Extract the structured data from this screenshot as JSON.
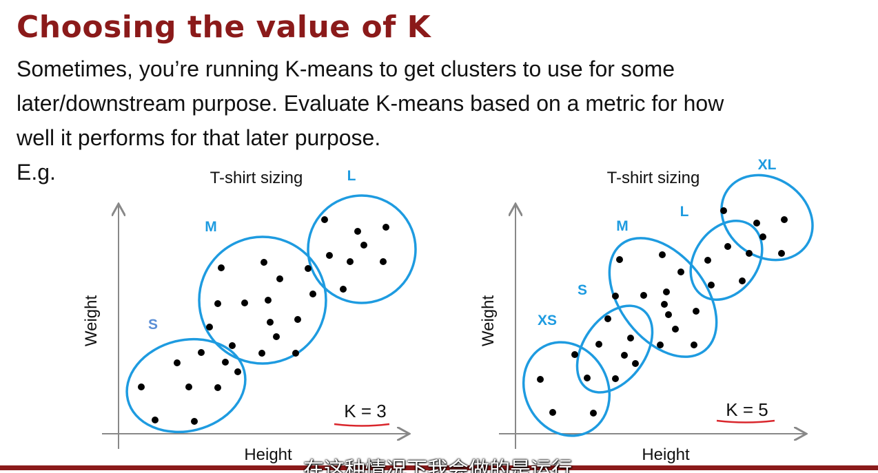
{
  "slide": {
    "title": "Choosing the value of K",
    "lines": [
      "Sometimes, you’re running K-means to get clusters to use for some",
      "later/downstream purpose. Evaluate K-means based on a metric for how",
      "well it performs for that later purpose.",
      "E.g."
    ],
    "subtitle": "在这种情况下我会做的是运行"
  },
  "colors": {
    "title": "#8b1a1a",
    "cluster": "#1e9be0",
    "cluster_label": "#1e9be0",
    "s_label_left": "#5b8fd6",
    "underline": "#d9262c",
    "axis": "#888888",
    "bar": "#8b1a1a"
  },
  "plots": [
    {
      "title": "T-shirt sizing",
      "xlabel": "Height",
      "ylabel": "Weight",
      "k_label": "K = 3",
      "clusters": [
        "S",
        "M",
        "L"
      ]
    },
    {
      "title": "T-shirt sizing",
      "xlabel": "Height",
      "ylabel": "Weight",
      "k_label": "K = 5",
      "clusters": [
        "XS",
        "S",
        "M",
        "L",
        "XL"
      ]
    }
  ]
}
